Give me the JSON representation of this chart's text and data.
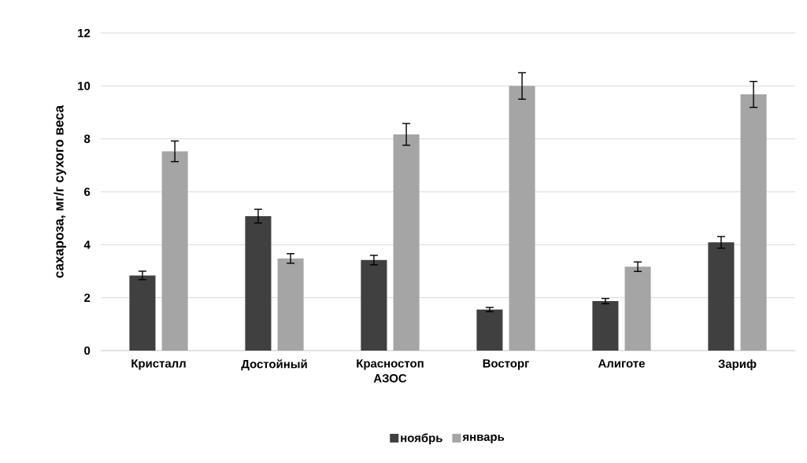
{
  "chart_data": {
    "type": "bar",
    "ylabel": "сахароза, мг/г сухого веса",
    "categories": [
      "Кристалл",
      "Достойный",
      "Красностоп АЗОС",
      "Восторг",
      "Алиготе",
      "Зариф"
    ],
    "series": [
      {
        "name": "ноябрь",
        "color": "#404040",
        "values": [
          2.84,
          5.08,
          3.42,
          1.55,
          1.87,
          4.09
        ],
        "errors": [
          0.16,
          0.26,
          0.18,
          0.08,
          0.1,
          0.22
        ]
      },
      {
        "name": "январь",
        "color": "#a5a5a5",
        "values": [
          7.53,
          3.48,
          8.17,
          10.0,
          3.17,
          9.68
        ],
        "errors": [
          0.39,
          0.18,
          0.41,
          0.5,
          0.18,
          0.49
        ]
      }
    ],
    "ylim": [
      0,
      12
    ],
    "yticks": [
      0,
      2,
      4,
      6,
      8,
      10,
      12
    ],
    "grid": "y",
    "legend": "bottom"
  }
}
